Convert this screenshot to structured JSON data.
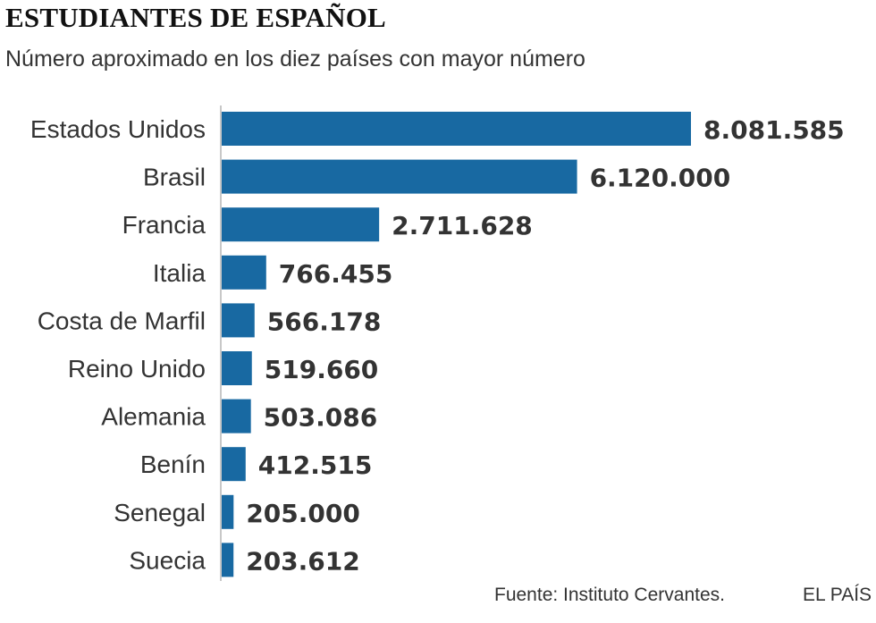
{
  "chart_data": {
    "type": "bar",
    "orientation": "horizontal",
    "title": "ESTUDIANTES DE ESPAÑOL",
    "subtitle": "Número aproximado en los diez países con mayor número",
    "categories": [
      "Estados Unidos",
      "Brasil",
      "Francia",
      "Italia",
      "Costa de Marfil",
      "Reino Unido",
      "Alemania",
      "Benín",
      "Senegal",
      "Suecia"
    ],
    "values": [
      8081585,
      6120000,
      2711628,
      766455,
      566178,
      519660,
      503086,
      412515,
      205000,
      203612
    ],
    "value_labels": [
      "8.081.585",
      "6.120.000",
      "2.711.628",
      "766.455",
      "566.178",
      "519.660",
      "503.086",
      "412.515",
      "205.000",
      "203.612"
    ],
    "xlim": [
      0,
      8081585
    ],
    "bar_color": "#1869a2",
    "axis_color": "#b5b5b5",
    "grid": false,
    "legend": "none"
  },
  "footer": {
    "source": "Fuente: Instituto Cervantes.",
    "brand": "EL PAÍS"
  }
}
